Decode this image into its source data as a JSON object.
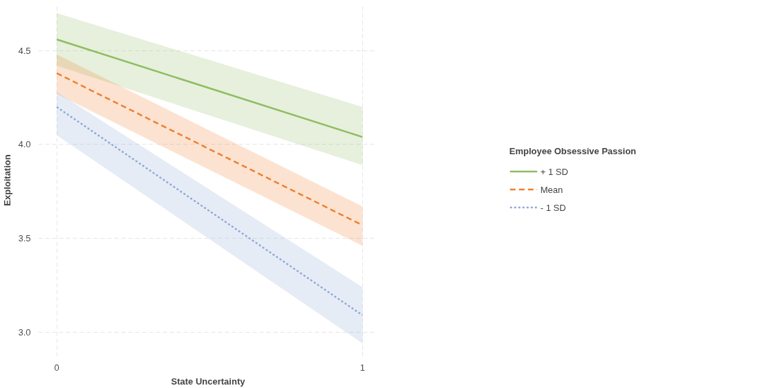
{
  "chart_data": {
    "type": "line",
    "xlabel": "State Uncertainty",
    "ylabel": "Exploitation",
    "legend_title": "Employee Obsessive Passion",
    "legend": "right",
    "grid": true,
    "xlim": [
      -0.06,
      1.05
    ],
    "ylim": [
      2.87,
      4.75
    ],
    "xticks": [
      0,
      1
    ],
    "yticks": [
      {
        "value": 3.0,
        "label": "3.0"
      },
      {
        "value": 3.5,
        "label": "3.5"
      },
      {
        "value": 4.0,
        "label": "4.0"
      },
      {
        "value": 4.5,
        "label": "4.5"
      }
    ],
    "x": [
      0,
      1
    ],
    "series": [
      {
        "name": "+ 1 SD",
        "color": "#8fbc5f",
        "line_style": "solid",
        "values": [
          4.56,
          4.04
        ],
        "lower": [
          4.42,
          3.89
        ],
        "upper": [
          4.7,
          4.2
        ]
      },
      {
        "name": "Mean",
        "color": "#f07f2e",
        "line_style": "dashed",
        "values": [
          4.38,
          3.57
        ],
        "lower": [
          4.27,
          3.46
        ],
        "upper": [
          4.48,
          3.67
        ]
      },
      {
        "name": "- 1 SD",
        "color": "#8faad8",
        "line_style": "dotted",
        "values": [
          4.2,
          3.09
        ],
        "lower": [
          4.05,
          2.94
        ],
        "upper": [
          4.28,
          3.24
        ]
      }
    ]
  }
}
